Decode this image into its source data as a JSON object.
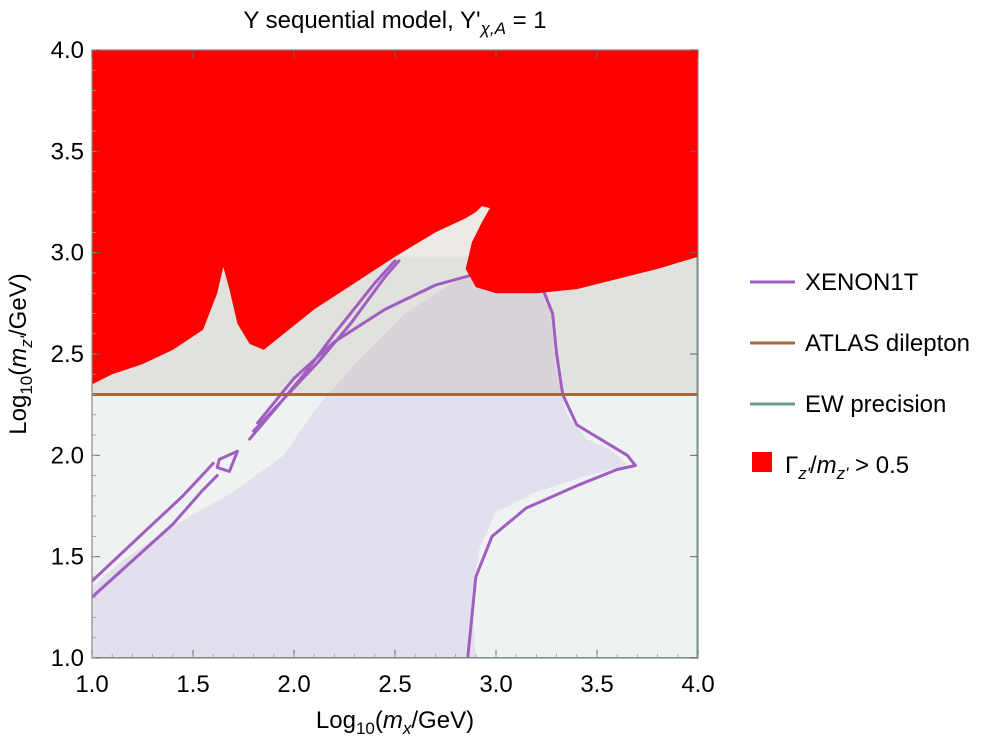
{
  "chart_data": {
    "type": "area",
    "title": {
      "main": "Y sequential model, Y'",
      "sub": "χ,A",
      "tail": " = 1"
    },
    "xlabel": {
      "pre": "Log",
      "sub1": "10",
      "mid": "(",
      "var": "m",
      "sub2": "x",
      "post": "/GeV)"
    },
    "ylabel": {
      "pre": "Log",
      "sub1": "10",
      "mid": "(",
      "var": "m",
      "sub2": "z'",
      "post": "/GeV)"
    },
    "xlim": [
      1.0,
      4.0
    ],
    "ylim": [
      1.0,
      4.0
    ],
    "xticks": [
      "1.0",
      "1.5",
      "2.0",
      "2.5",
      "3.0",
      "3.5",
      "4.0"
    ],
    "yticks": [
      "1.0",
      "1.5",
      "2.0",
      "2.5",
      "3.0",
      "3.5",
      "4.0"
    ],
    "legend_position": "right",
    "legend": [
      {
        "key": "xenon",
        "label": "XENON1T",
        "color": "#a05fc0",
        "kind": "line"
      },
      {
        "key": "atlas",
        "label": "ATLAS dilepton",
        "color": "#a8683a",
        "kind": "line"
      },
      {
        "key": "ew",
        "label": "EW precision",
        "color": "#6b9a90",
        "kind": "line"
      },
      {
        "key": "width",
        "label": {
          "pre": "Γ",
          "sub1": "z'",
          "mid": "/",
          "var": "m",
          "sub2": "z'",
          "post": " > 0.5"
        },
        "color": "#ff0000",
        "kind": "box"
      }
    ],
    "series": [
      {
        "name": "EW precision",
        "color": "#6b9a90",
        "fill": "#eef3f1",
        "points": [
          [
            1.0,
            1.0
          ],
          [
            4.0,
            1.0
          ],
          [
            4.0,
            2.98
          ],
          [
            1.0,
            2.98
          ]
        ]
      },
      {
        "name": "ATLAS dilepton",
        "color": "#a8683a",
        "y": 2.3
      },
      {
        "name": "XENON1T excluded region",
        "color": "#a05fc0",
        "fill": "#e0daec",
        "points": [
          [
            1.0,
            1.0
          ],
          [
            2.9,
            1.0
          ],
          [
            2.88,
            1.3
          ],
          [
            2.92,
            1.55
          ],
          [
            3.0,
            1.72
          ],
          [
            3.2,
            1.82
          ],
          [
            3.45,
            1.9
          ],
          [
            3.65,
            1.95
          ],
          [
            3.58,
            2.02
          ],
          [
            3.45,
            2.08
          ],
          [
            3.35,
            2.2
          ],
          [
            3.3,
            2.4
          ],
          [
            3.28,
            2.6
          ],
          [
            3.26,
            2.79
          ],
          [
            3.0,
            2.9
          ],
          [
            2.8,
            2.86
          ],
          [
            2.55,
            2.7
          ],
          [
            2.3,
            2.45
          ],
          [
            2.1,
            2.22
          ],
          [
            1.95,
            2.0
          ],
          [
            1.7,
            1.82
          ],
          [
            1.4,
            1.65
          ],
          [
            1.15,
            1.48
          ],
          [
            1.0,
            1.35
          ]
        ]
      },
      {
        "name": "XENON1T contours",
        "color": "#a05fc0",
        "paths": [
          [
            [
              1.0,
              1.3
            ],
            [
              1.2,
              1.48
            ],
            [
              1.4,
              1.66
            ],
            [
              1.55,
              1.83
            ],
            [
              1.62,
              1.9
            ]
          ],
          [
            [
              1.0,
              1.38
            ],
            [
              1.15,
              1.52
            ],
            [
              1.3,
              1.66
            ],
            [
              1.45,
              1.8
            ],
            [
              1.6,
              1.96
            ]
          ],
          [
            [
              1.63,
              1.98
            ],
            [
              1.72,
              2.02
            ],
            [
              1.68,
              1.92
            ],
            [
              1.62,
              1.94
            ],
            [
              1.63,
              1.98
            ]
          ],
          [
            [
              1.78,
              2.08
            ],
            [
              1.9,
              2.22
            ],
            [
              2.05,
              2.4
            ],
            [
              2.2,
              2.6
            ],
            [
              2.4,
              2.85
            ],
            [
              2.5,
              2.96
            ]
          ],
          [
            [
              1.8,
              2.12
            ],
            [
              1.95,
              2.28
            ],
            [
              2.12,
              2.46
            ],
            [
              2.28,
              2.65
            ],
            [
              2.45,
              2.88
            ],
            [
              2.52,
              2.96
            ]
          ],
          [
            [
              1.82,
              2.16
            ],
            [
              2.0,
              2.38
            ],
            [
              2.2,
              2.56
            ],
            [
              2.45,
              2.72
            ],
            [
              2.7,
              2.84
            ],
            [
              2.92,
              2.9
            ],
            [
              3.05,
              2.9
            ],
            [
              3.22,
              2.85
            ],
            [
              3.28,
              2.7
            ],
            [
              3.3,
              2.5
            ],
            [
              3.33,
              2.3
            ],
            [
              3.4,
              2.15
            ],
            [
              3.55,
              2.06
            ],
            [
              3.65,
              2.0
            ],
            [
              3.69,
              1.95
            ],
            [
              3.6,
              1.93
            ],
            [
              3.4,
              1.85
            ],
            [
              3.15,
              1.74
            ],
            [
              2.98,
              1.6
            ],
            [
              2.9,
              1.4
            ],
            [
              2.88,
              1.2
            ],
            [
              2.86,
              1.0
            ]
          ]
        ]
      },
      {
        "name": "Γz'/mz' > 0.5",
        "color": "#ff0000",
        "points": [
          [
            1.0,
            4.0
          ],
          [
            4.0,
            4.0
          ],
          [
            4.0,
            2.98
          ],
          [
            3.8,
            2.92
          ],
          [
            3.6,
            2.87
          ],
          [
            3.4,
            2.82
          ],
          [
            3.2,
            2.8
          ],
          [
            3.0,
            2.8
          ],
          [
            2.9,
            2.83
          ],
          [
            2.85,
            2.92
          ],
          [
            2.88,
            3.05
          ],
          [
            2.93,
            3.15
          ],
          [
            2.97,
            3.22
          ],
          [
            2.93,
            3.23
          ],
          [
            2.9,
            3.2
          ],
          [
            2.85,
            3.17
          ],
          [
            2.7,
            3.1
          ],
          [
            2.5,
            2.98
          ],
          [
            2.3,
            2.85
          ],
          [
            2.1,
            2.72
          ],
          [
            1.95,
            2.6
          ],
          [
            1.85,
            2.52
          ],
          [
            1.78,
            2.55
          ],
          [
            1.72,
            2.65
          ],
          [
            1.68,
            2.82
          ],
          [
            1.65,
            2.93
          ],
          [
            1.62,
            2.8
          ],
          [
            1.55,
            2.62
          ],
          [
            1.4,
            2.52
          ],
          [
            1.25,
            2.45
          ],
          [
            1.1,
            2.4
          ],
          [
            1.0,
            2.35
          ]
        ]
      }
    ]
  }
}
